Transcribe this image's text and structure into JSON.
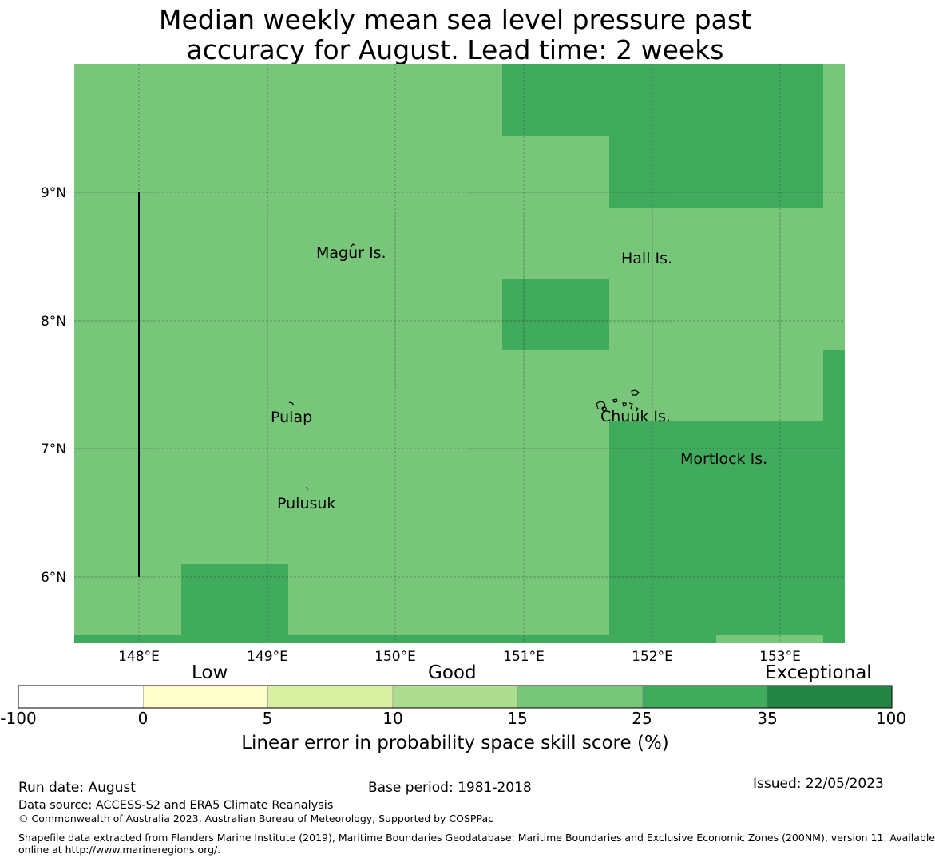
{
  "title": {
    "line1": "Median weekly mean sea level pressure past",
    "line2": "accuracy for August. Lead time: 2 weeks"
  },
  "map": {
    "lon_ticks": [
      "148°E",
      "149°E",
      "150°E",
      "151°E",
      "152°E",
      "153°E"
    ],
    "lat_ticks": [
      "9°N",
      "8°N",
      "7°N",
      "6°N"
    ],
    "places": [
      {
        "name": "Magur Is.",
        "lon": 149.6,
        "lat": 8.54
      },
      {
        "name": "Hall Is.",
        "lon": 151.97,
        "lat": 8.49
      },
      {
        "name": "Pulap",
        "lon": 149.2,
        "lat": 7.25
      },
      {
        "name": "Chuuk Is.",
        "lon": 151.85,
        "lat": 7.26
      },
      {
        "name": "Mortlock Is.",
        "lon": 152.58,
        "lat": 6.93
      },
      {
        "name": "Pulusuk",
        "lon": 149.32,
        "lat": 6.58
      }
    ],
    "colors": {
      "good_15_25": "#78c679",
      "good_25_35": "#41ab5d",
      "coast": "#000000"
    }
  },
  "colorbar": {
    "category_labels": [
      "Low",
      "Good",
      "Exceptional"
    ],
    "ticks": [
      "-100",
      "0",
      "5",
      "10",
      "15",
      "25",
      "35",
      "100"
    ],
    "colors": [
      "#ffffff",
      "#ffffcc",
      "#d9f0a3",
      "#addd8e",
      "#78c679",
      "#41ab5d",
      "#238443"
    ],
    "label": "Linear error in probability space skill score (%)"
  },
  "footer": {
    "run_date": "Run date: August",
    "base_period": "Base period: 1981-2018",
    "issued": "Issued: 22/05/2023",
    "data_source": "Data source: ACCESS-S2 and ERA5 Climate Reanalysis",
    "copyright": "© Commonwealth of Australia 2023, Australian Bureau of Meteorology, Supported by COSPPac",
    "shapefile_line1": "Shapefile data extracted from Flanders Marine Institute (2019), Maritime Boundaries Geodatabase: Maritime Boundaries and Exclusive Economic Zones (200NM), version 11. Available",
    "shapefile_line2": "online at http://www.marineregions.org/."
  }
}
